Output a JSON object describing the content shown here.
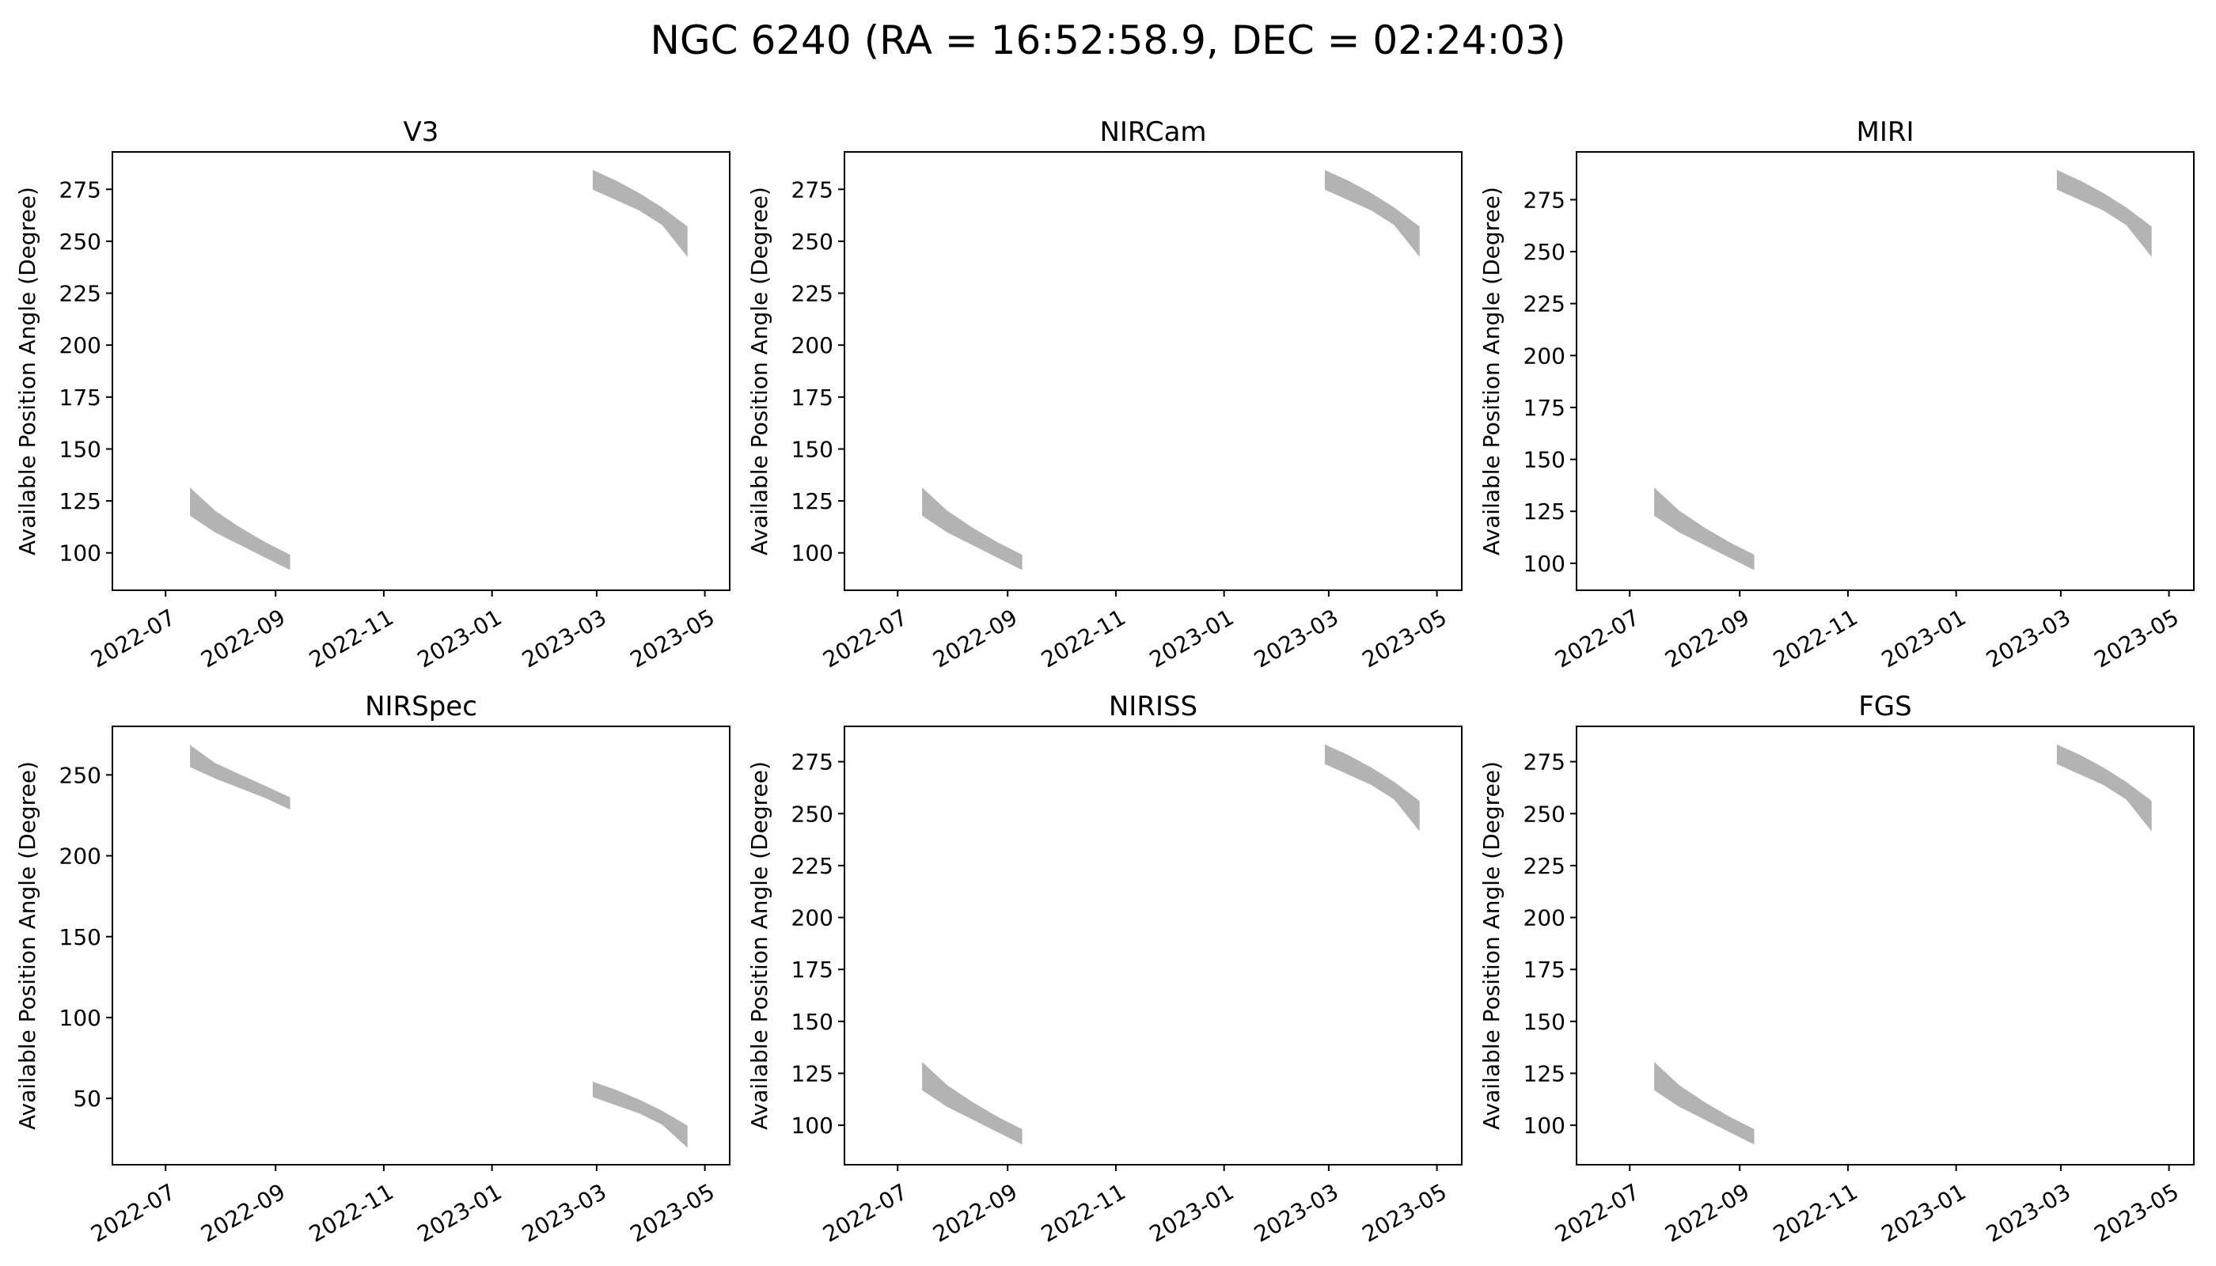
{
  "figure": {
    "title": "NGC 6240 (RA = 16:52:58.9, DEC = 02:24:03)",
    "band_color": "#b3b3b3"
  },
  "chart_data": [
    {
      "type": "area",
      "title": "V3",
      "ylabel": "Available Position Angle (Degree)",
      "xlim": [
        "2022-06-01",
        "2023-05-15"
      ],
      "ylim": [
        82,
        293
      ],
      "yticks": [
        100,
        125,
        150,
        175,
        200,
        225,
        250,
        275
      ],
      "xticks": [
        "2022-07",
        "2022-09",
        "2022-11",
        "2023-01",
        "2023-03",
        "2023-05"
      ],
      "bands": [
        {
          "x": [
            "2022-07-15",
            "2022-07-29",
            "2022-08-12",
            "2022-08-26",
            "2022-09-09"
          ],
          "y_low": [
            118,
            110,
            104,
            98,
            92
          ],
          "y_high": [
            131,
            120,
            112,
            105,
            99
          ]
        },
        {
          "x": [
            "2023-02-27",
            "2023-03-12",
            "2023-03-25",
            "2023-04-07",
            "2023-04-21"
          ],
          "y_low": [
            275,
            270,
            265,
            258,
            243
          ],
          "y_high": [
            284,
            279,
            273,
            266,
            257
          ]
        }
      ]
    },
    {
      "type": "area",
      "title": "NIRCam",
      "ylabel": "Available Position Angle (Degree)",
      "xlim": [
        "2022-06-01",
        "2023-05-15"
      ],
      "ylim": [
        82,
        293
      ],
      "yticks": [
        100,
        125,
        150,
        175,
        200,
        225,
        250,
        275
      ],
      "xticks": [
        "2022-07",
        "2022-09",
        "2022-11",
        "2023-01",
        "2023-03",
        "2023-05"
      ],
      "bands": [
        {
          "x": [
            "2022-07-15",
            "2022-07-29",
            "2022-08-12",
            "2022-08-26",
            "2022-09-09"
          ],
          "y_low": [
            118,
            110,
            104,
            98,
            92
          ],
          "y_high": [
            131,
            120,
            112,
            105,
            99
          ]
        },
        {
          "x": [
            "2023-02-27",
            "2023-03-12",
            "2023-03-25",
            "2023-04-07",
            "2023-04-21"
          ],
          "y_low": [
            275,
            270,
            265,
            258,
            243
          ],
          "y_high": [
            284,
            279,
            273,
            266,
            257
          ]
        }
      ]
    },
    {
      "type": "area",
      "title": "MIRI",
      "ylabel": "Available Position Angle (Degree)",
      "xlim": [
        "2022-06-01",
        "2023-05-15"
      ],
      "ylim": [
        87,
        298
      ],
      "yticks": [
        100,
        125,
        150,
        175,
        200,
        225,
        250,
        275
      ],
      "xticks": [
        "2022-07",
        "2022-09",
        "2022-11",
        "2023-01",
        "2023-03",
        "2023-05"
      ],
      "bands": [
        {
          "x": [
            "2022-07-15",
            "2022-07-29",
            "2022-08-12",
            "2022-08-26",
            "2022-09-09"
          ],
          "y_low": [
            123,
            115,
            109,
            103,
            97
          ],
          "y_high": [
            136,
            125,
            117,
            110,
            104
          ]
        },
        {
          "x": [
            "2023-02-27",
            "2023-03-12",
            "2023-03-25",
            "2023-04-07",
            "2023-04-21"
          ],
          "y_low": [
            280,
            275,
            270,
            263,
            248
          ],
          "y_high": [
            289,
            284,
            278,
            271,
            262
          ]
        }
      ]
    },
    {
      "type": "area",
      "title": "NIRSpec",
      "ylabel": "Available Position Angle (Degree)",
      "xlim": [
        "2022-06-01",
        "2023-05-15"
      ],
      "ylim": [
        9,
        280
      ],
      "yticks": [
        50,
        100,
        150,
        200,
        250
      ],
      "xticks": [
        "2022-07",
        "2022-09",
        "2022-11",
        "2023-01",
        "2023-03",
        "2023-05"
      ],
      "bands": [
        {
          "x": [
            "2022-07-15",
            "2022-07-29",
            "2022-08-12",
            "2022-08-26",
            "2022-09-09"
          ],
          "y_low": [
            255,
            248,
            242,
            236,
            229
          ],
          "y_high": [
            268,
            257,
            250,
            243,
            236
          ]
        },
        {
          "x": [
            "2023-02-27",
            "2023-03-12",
            "2023-03-25",
            "2023-04-07",
            "2023-04-21"
          ],
          "y_low": [
            51,
            46,
            41,
            34,
            20
          ],
          "y_high": [
            60,
            55,
            49,
            42,
            33
          ]
        }
      ]
    },
    {
      "type": "area",
      "title": "NIRISS",
      "ylabel": "Available Position Angle (Degree)",
      "xlim": [
        "2022-06-01",
        "2023-05-15"
      ],
      "ylim": [
        81,
        292
      ],
      "yticks": [
        100,
        125,
        150,
        175,
        200,
        225,
        250,
        275
      ],
      "xticks": [
        "2022-07",
        "2022-09",
        "2022-11",
        "2023-01",
        "2023-03",
        "2023-05"
      ],
      "bands": [
        {
          "x": [
            "2022-07-15",
            "2022-07-29",
            "2022-08-12",
            "2022-08-26",
            "2022-09-09"
          ],
          "y_low": [
            117,
            109,
            103,
            97,
            91
          ],
          "y_high": [
            130,
            119,
            111,
            104,
            98
          ]
        },
        {
          "x": [
            "2023-02-27",
            "2023-03-12",
            "2023-03-25",
            "2023-04-07",
            "2023-04-21"
          ],
          "y_low": [
            274,
            269,
            264,
            257,
            242
          ],
          "y_high": [
            283,
            278,
            272,
            265,
            256
          ]
        }
      ]
    },
    {
      "type": "area",
      "title": "FGS",
      "ylabel": "Available Position Angle (Degree)",
      "xlim": [
        "2022-06-01",
        "2023-05-15"
      ],
      "ylim": [
        81,
        292
      ],
      "yticks": [
        100,
        125,
        150,
        175,
        200,
        225,
        250,
        275
      ],
      "xticks": [
        "2022-07",
        "2022-09",
        "2022-11",
        "2023-01",
        "2023-03",
        "2023-05"
      ],
      "bands": [
        {
          "x": [
            "2022-07-15",
            "2022-07-29",
            "2022-08-12",
            "2022-08-26",
            "2022-09-09"
          ],
          "y_low": [
            117,
            109,
            103,
            97,
            91
          ],
          "y_high": [
            130,
            119,
            111,
            104,
            98
          ]
        },
        {
          "x": [
            "2023-02-27",
            "2023-03-12",
            "2023-03-25",
            "2023-04-07",
            "2023-04-21"
          ],
          "y_low": [
            274,
            269,
            264,
            257,
            242
          ],
          "y_high": [
            283,
            278,
            272,
            265,
            256
          ]
        }
      ]
    }
  ]
}
